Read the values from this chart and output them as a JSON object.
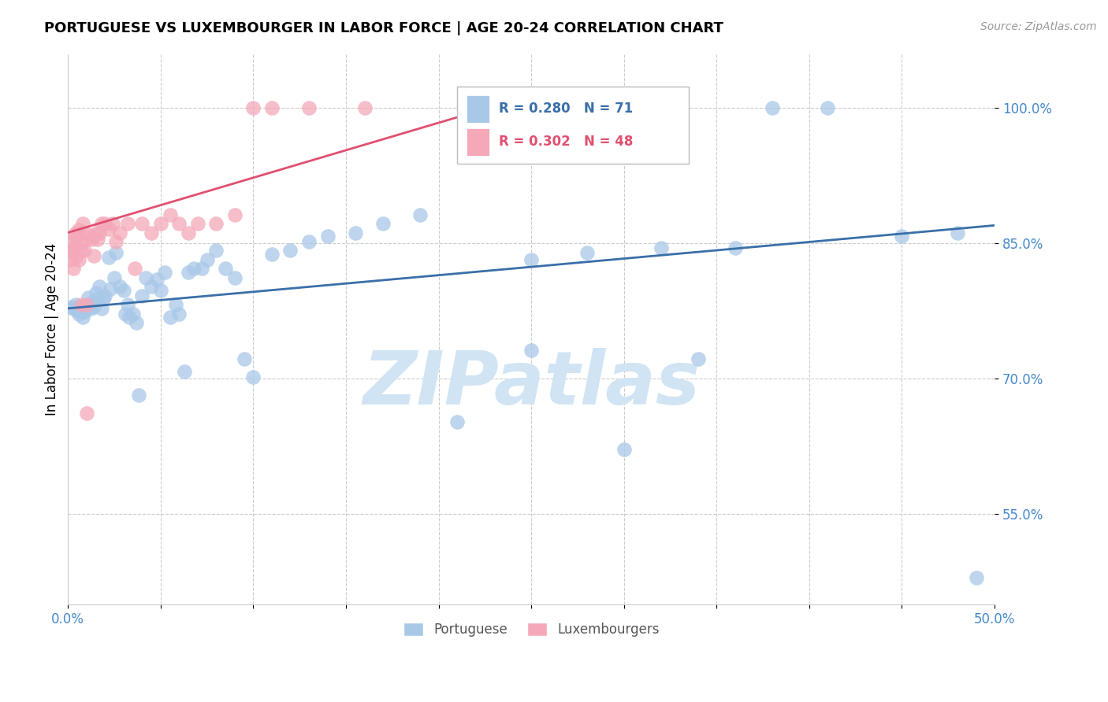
{
  "title": "PORTUGUESE VS LUXEMBOURGER IN LABOR FORCE | AGE 20-24 CORRELATION CHART",
  "source": "Source: ZipAtlas.com",
  "ylabel": "In Labor Force | Age 20-24",
  "xlim": [
    0.0,
    0.5
  ],
  "ylim": [
    0.45,
    1.06
  ],
  "xticks": [
    0.0,
    0.05,
    0.1,
    0.15,
    0.2,
    0.25,
    0.3,
    0.35,
    0.4,
    0.45,
    0.5
  ],
  "xticklabels": [
    "0.0%",
    "",
    "",
    "",
    "",
    "",
    "",
    "",
    "",
    "",
    "50.0%"
  ],
  "yticks": [
    0.55,
    0.7,
    0.85,
    1.0
  ],
  "yticklabels": [
    "55.0%",
    "70.0%",
    "85.0%",
    "100.0%"
  ],
  "legend_blue_r": "R = 0.280",
  "legend_blue_n": "N = 71",
  "legend_pink_r": "R = 0.302",
  "legend_pink_n": "N = 48",
  "blue_color": "#a8c8e8",
  "pink_color": "#f4a8b8",
  "blue_line_color": "#3a6fa8",
  "pink_line_color": "#e05070",
  "axis_color": "#4488cc",
  "grid_color": "#cccccc",
  "watermark": "ZIPatlas",
  "watermark_color": "#d0e4f4",
  "portuguese_x": [
    0.002,
    0.003,
    0.004,
    0.005,
    0.005,
    0.006,
    0.007,
    0.008,
    0.009,
    0.01,
    0.011,
    0.012,
    0.013,
    0.014,
    0.015,
    0.016,
    0.017,
    0.018,
    0.019,
    0.02,
    0.022,
    0.023,
    0.025,
    0.026,
    0.028,
    0.03,
    0.031,
    0.032,
    0.033,
    0.035,
    0.037,
    0.038,
    0.04,
    0.042,
    0.045,
    0.048,
    0.05,
    0.052,
    0.055,
    0.058,
    0.06,
    0.063,
    0.065,
    0.068,
    0.072,
    0.075,
    0.08,
    0.085,
    0.09,
    0.095,
    0.1,
    0.11,
    0.12,
    0.13,
    0.14,
    0.155,
    0.17,
    0.19,
    0.21,
    0.25,
    0.3,
    0.34,
    0.38,
    0.41,
    0.45,
    0.48,
    0.49,
    0.25,
    0.28,
    0.32,
    0.36
  ],
  "portuguese_y": [
    0.78,
    0.778,
    0.782,
    0.775,
    0.78,
    0.772,
    0.776,
    0.768,
    0.774,
    0.78,
    0.79,
    0.778,
    0.785,
    0.78,
    0.795,
    0.788,
    0.802,
    0.778,
    0.788,
    0.792,
    0.835,
    0.8,
    0.812,
    0.84,
    0.802,
    0.798,
    0.772,
    0.782,
    0.768,
    0.772,
    0.762,
    0.682,
    0.792,
    0.812,
    0.802,
    0.81,
    0.798,
    0.818,
    0.768,
    0.782,
    0.772,
    0.708,
    0.818,
    0.822,
    0.822,
    0.832,
    0.842,
    0.822,
    0.812,
    0.722,
    0.702,
    0.838,
    0.842,
    0.852,
    0.858,
    0.862,
    0.872,
    0.882,
    0.652,
    0.732,
    0.622,
    0.722,
    1.0,
    1.0,
    0.858,
    0.862,
    0.48,
    0.832,
    0.84,
    0.845,
    0.845
  ],
  "luxembourger_x": [
    0.001,
    0.002,
    0.002,
    0.003,
    0.003,
    0.004,
    0.004,
    0.004,
    0.005,
    0.005,
    0.006,
    0.006,
    0.007,
    0.007,
    0.008,
    0.008,
    0.009,
    0.01,
    0.011,
    0.012,
    0.013,
    0.014,
    0.015,
    0.016,
    0.017,
    0.018,
    0.02,
    0.022,
    0.024,
    0.026,
    0.028,
    0.032,
    0.036,
    0.04,
    0.045,
    0.05,
    0.055,
    0.06,
    0.065,
    0.07,
    0.08,
    0.09,
    0.1,
    0.11,
    0.13,
    0.16,
    0.22,
    0.01
  ],
  "luxembourger_y": [
    0.832,
    0.842,
    0.852,
    0.842,
    0.822,
    0.858,
    0.862,
    0.835,
    0.86,
    0.852,
    0.865,
    0.832,
    0.842,
    0.782,
    0.852,
    0.872,
    0.842,
    0.782,
    0.86,
    0.857,
    0.855,
    0.836,
    0.862,
    0.855,
    0.862,
    0.872,
    0.872,
    0.866,
    0.872,
    0.852,
    0.862,
    0.872,
    0.822,
    0.872,
    0.862,
    0.872,
    0.882,
    0.872,
    0.862,
    0.872,
    0.872,
    0.882,
    1.0,
    1.0,
    1.0,
    1.0,
    1.0,
    0.662
  ]
}
